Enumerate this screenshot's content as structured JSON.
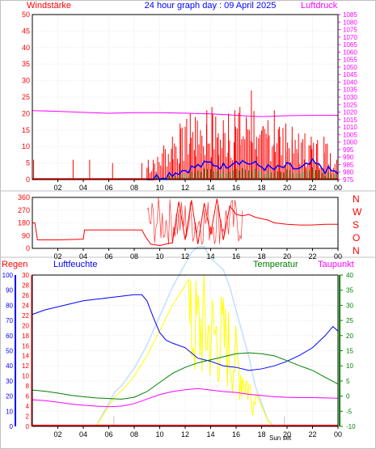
{
  "header": {
    "left_title": "Windstärke",
    "center_title": "24 hour graph day : 09 April 2025",
    "right_title": "Luftdruck"
  },
  "wind_dir_letters": [
    "N",
    "W",
    "S",
    "O",
    "N"
  ],
  "bottom_labels": {
    "regen": "Regen",
    "luftfeuchte": "Luftfeuchte",
    "temperatur": "Temperatur",
    "taupunkt": "Taupunkt",
    "sun": "Sun set"
  },
  "colors": {
    "wind": "#ff0000",
    "gust_blue": "#0000ff",
    "wind_green": "#008000",
    "pressure": "#ff00ff",
    "winddir": "#ff0000",
    "humidity": "#0000ff",
    "temperature": "#008000",
    "dewpoint": "#ff00ff",
    "solar": "#ffff00",
    "solar_light": "#c0e0ff",
    "rain": "#ff0000"
  },
  "chart_data": [
    {
      "type": "bar",
      "panel": "wind",
      "title": "24 hour graph day : 09 April 2025",
      "xlabel": "",
      "ylabel": "Windstärke",
      "x_ticks": [
        "02",
        "04",
        "06",
        "08",
        "10",
        "12",
        "14",
        "16",
        "18",
        "20",
        "22",
        "00"
      ],
      "ylim": [
        0,
        50
      ],
      "yticks": [
        0,
        5,
        10,
        15,
        20,
        25,
        30,
        35,
        40,
        45,
        50
      ],
      "y2label": "Luftdruck",
      "y2lim": [
        975,
        1085
      ],
      "y2ticks": [
        975,
        980,
        985,
        990,
        995,
        1000,
        1005,
        1010,
        1015,
        1020,
        1025,
        1030,
        1035,
        1040,
        1045,
        1050,
        1055,
        1060,
        1065,
        1070,
        1075,
        1080,
        1085
      ],
      "gust_max_hours": [
        0.1,
        3.2,
        4.5,
        6.3,
        8.6,
        9.1,
        9.5,
        10.2,
        11.0,
        11.6,
        12.0,
        12.4,
        12.8,
        13.2,
        13.7,
        14.1,
        14.6,
        15.0,
        15.4,
        15.9,
        16.3,
        16.8,
        17.2,
        17.6,
        18.1,
        18.5,
        19.0,
        19.4,
        19.9,
        20.4,
        20.9,
        21.4,
        21.9,
        22.4,
        22.9,
        23.4,
        23.9
      ],
      "gust_max_values": [
        6,
        6,
        6,
        5,
        5,
        6,
        6,
        8,
        13,
        17,
        16,
        20,
        19,
        15,
        21,
        22,
        14,
        18,
        20,
        21,
        22,
        19,
        27,
        13,
        16,
        18,
        21,
        16,
        17,
        12,
        14,
        14,
        13,
        12,
        13,
        8,
        6
      ],
      "series": [
        {
          "name": "Luftdruck",
          "x": [
            0,
            2,
            4,
            6,
            8,
            10,
            12,
            14,
            16,
            17,
            18,
            20,
            22,
            24
          ],
          "values": [
            1021,
            1020.5,
            1019.8,
            1019.2,
            1019.6,
            1019.6,
            1019.3,
            1018.8,
            1017.9,
            1017.3,
            1017.0,
            1017.6,
            1017.8,
            1017.9
          ]
        },
        {
          "name": "Mittelwind",
          "x": [
            0,
            9,
            10,
            11,
            12,
            13,
            14,
            15,
            16,
            17,
            18,
            19,
            20,
            21,
            22,
            23,
            24
          ],
          "values": [
            0,
            0,
            1,
            2,
            3,
            4,
            5,
            4,
            6,
            5,
            4,
            3,
            4,
            3,
            5,
            3,
            2
          ]
        }
      ]
    },
    {
      "type": "line",
      "panel": "winddir",
      "ylim": [
        0,
        360
      ],
      "yticks": [
        0,
        90,
        180,
        270,
        360
      ],
      "series": [
        {
          "name": "Windrichtung",
          "x": [
            0,
            0.2,
            0.4,
            2.0,
            4.0,
            4.1,
            8.6,
            8.9,
            9.3,
            10.0,
            10.5,
            11.0,
            11.5,
            12.0,
            12.5,
            13.0,
            13.5,
            14.0,
            14.5,
            15.0,
            15.5,
            16.0,
            16.5,
            17.0,
            17.5,
            18.0,
            18.5,
            19.0,
            19.5,
            20.0,
            21.0,
            22.0,
            23.0,
            24.0
          ],
          "values": [
            180,
            180,
            60,
            60,
            65,
            130,
            130,
            80,
            30,
            20,
            30,
            40,
            330,
            60,
            340,
            30,
            320,
            100,
            350,
            60,
            300,
            240,
            230,
            240,
            220,
            210,
            200,
            180,
            175,
            170,
            165,
            165,
            170,
            170
          ]
        }
      ]
    },
    {
      "type": "line",
      "panel": "climate",
      "ylabel": "Regen",
      "ylim": [
        0,
        100
      ],
      "yticks": [
        0,
        10,
        20,
        30,
        40,
        50,
        60,
        70,
        80,
        90,
        100
      ],
      "rain_scale": [
        0,
        2,
        4,
        6,
        8,
        10,
        12,
        14,
        16,
        18,
        20,
        22,
        24,
        26,
        28,
        30
      ],
      "humidity_scale": [
        0,
        10,
        20,
        30,
        40,
        50,
        60,
        70,
        80,
        90,
        100
      ],
      "temp_scale": [
        -10,
        -5,
        0,
        5,
        10,
        15,
        20,
        25,
        30,
        35,
        40
      ],
      "series": [
        {
          "name": "Luftfeuchte",
          "x": [
            0,
            1,
            2,
            3,
            4,
            5,
            6,
            7,
            8,
            8.6,
            9.0,
            9.5,
            10.0,
            10.5,
            11.0,
            12.0,
            13.0,
            14.0,
            15.0,
            16.0,
            17.0,
            18.0,
            19.0,
            20.0,
            21.0,
            22.0,
            23.0,
            23.6,
            24.0
          ],
          "values": [
            74,
            77,
            79,
            81,
            83,
            84,
            85,
            86,
            87,
            87,
            83,
            72,
            62,
            57,
            55,
            52,
            45,
            43,
            40,
            39,
            37,
            38,
            40,
            43,
            47,
            52,
            60,
            66,
            63
          ]
        },
        {
          "name": "Temperatur",
          "x": [
            0,
            1,
            2,
            3,
            4,
            5,
            6,
            7,
            8,
            9,
            10,
            11,
            12,
            13,
            14,
            15,
            16,
            17,
            18,
            19,
            20,
            21,
            22,
            23,
            24
          ],
          "values": [
            2,
            1.6,
            1.0,
            0.3,
            -0.2,
            -0.6,
            -0.8,
            -1.0,
            -0.4,
            1.5,
            4.5,
            7.5,
            9.5,
            11,
            12,
            13,
            14,
            14.3,
            14.0,
            13.3,
            11.7,
            10,
            8.5,
            6.2,
            4.0
          ]
        },
        {
          "name": "Taupunkt",
          "x": [
            0,
            1,
            2,
            3,
            4,
            5,
            6,
            7,
            8,
            9,
            10,
            11,
            12,
            13,
            14,
            15,
            16,
            17,
            18,
            19,
            20,
            21,
            22,
            23,
            24
          ],
          "values": [
            -1.2,
            -1.5,
            -2.0,
            -2.6,
            -3.0,
            -3.3,
            -3.5,
            -3.3,
            -2.5,
            -1.0,
            0.5,
            1.5,
            2.1,
            2.5,
            2.0,
            1.5,
            1.2,
            0.6,
            0.2,
            -0.2,
            -0.4,
            -0.5,
            -0.5,
            -0.6,
            -0.7
          ]
        },
        {
          "name": "Solar",
          "x": [
            5.0,
            5.5,
            6.0,
            6.5,
            7.0,
            8.0,
            9.0,
            10.0,
            11.0,
            12.0,
            12.5,
            13.0,
            13.5,
            14.0,
            14.5,
            15.0,
            15.5,
            16.0,
            16.5,
            17.0,
            17.5,
            18.0,
            18.5,
            19.0
          ],
          "values": [
            0,
            2,
            4,
            6,
            7,
            10,
            14,
            19,
            24,
            28,
            30,
            31,
            31,
            29,
            28,
            27,
            24,
            20,
            16,
            12,
            7,
            4,
            1,
            0
          ]
        },
        {
          "name": "Regen",
          "x": [
            0,
            24
          ],
          "values": [
            0,
            0
          ]
        }
      ]
    }
  ]
}
